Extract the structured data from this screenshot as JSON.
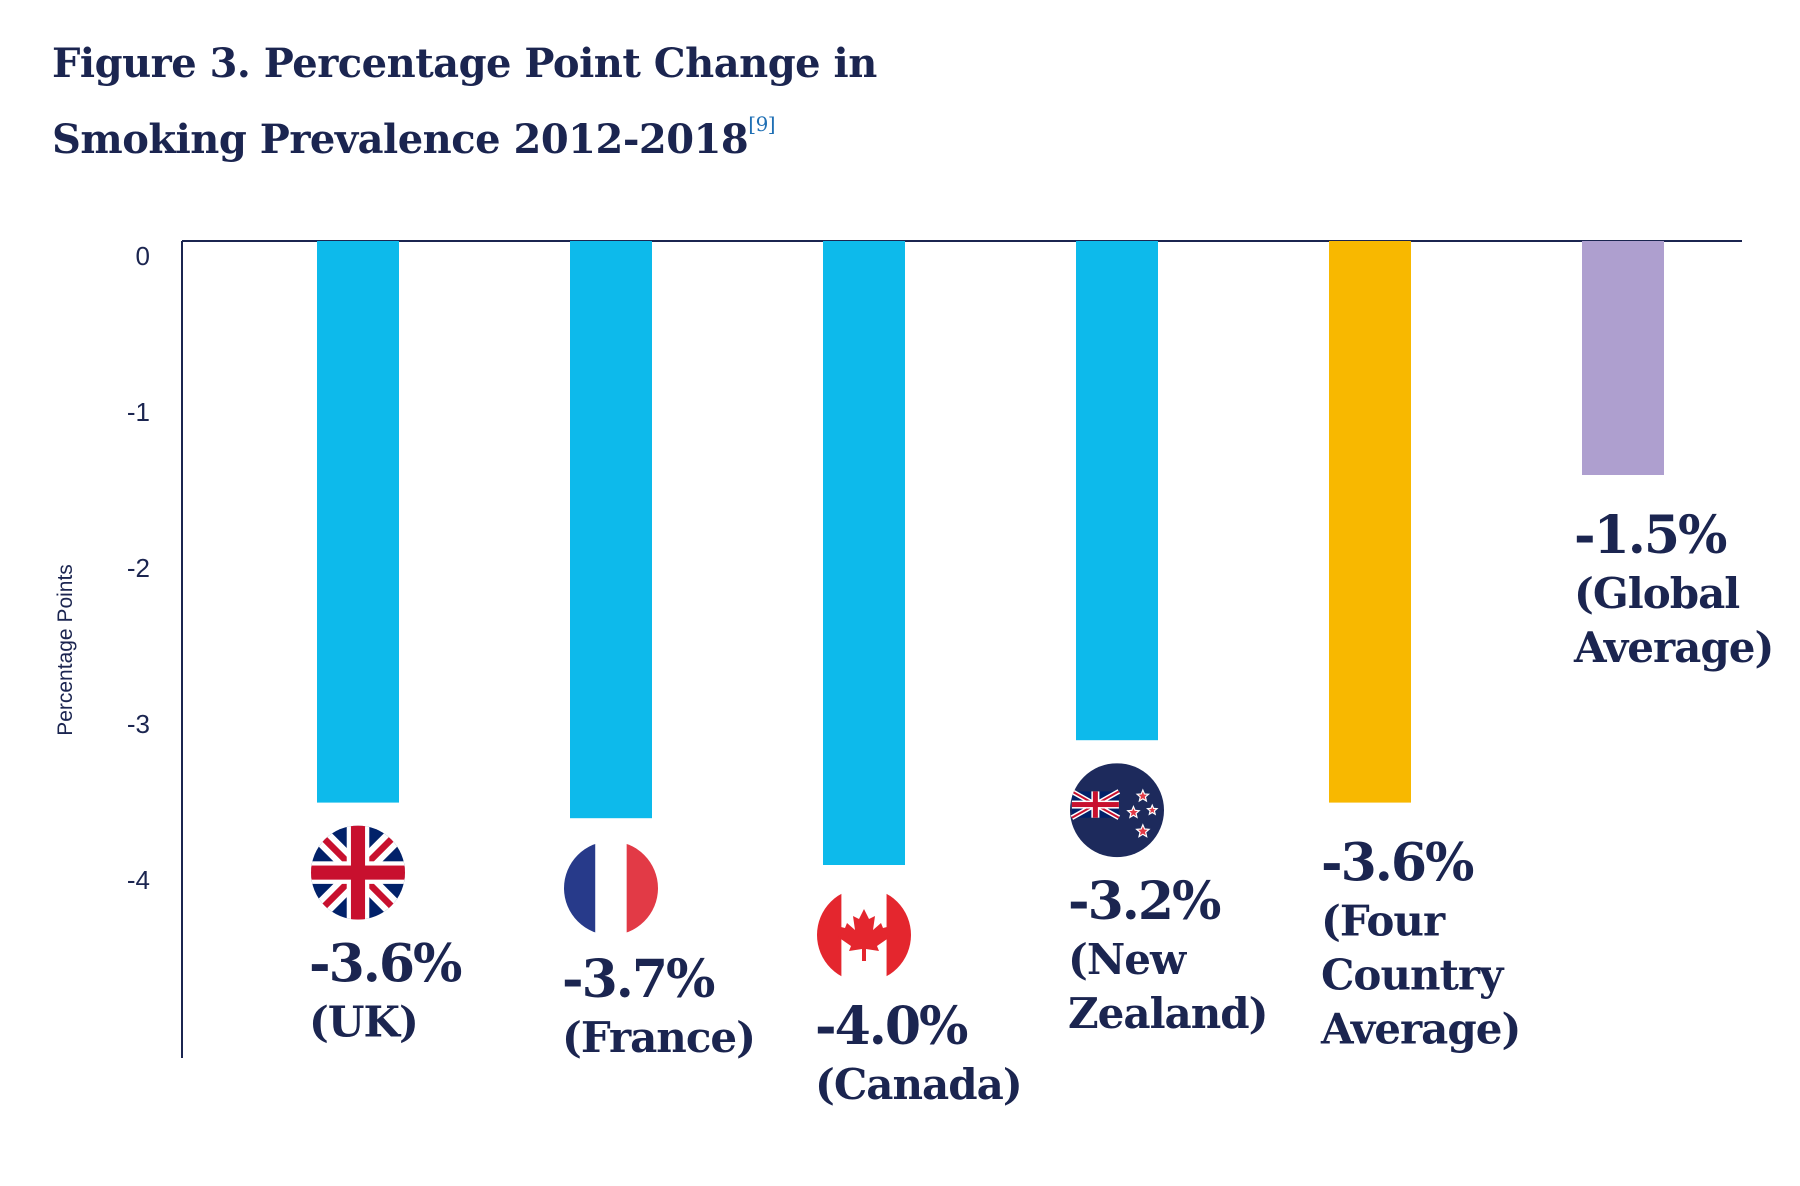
{
  "title": {
    "line1": "Figure 3. Percentage Point Change in",
    "line2": "Smoking Prevalence 2012-2018",
    "ref": "[9]"
  },
  "chart_data": {
    "type": "bar",
    "title": "Figure 3. Percentage Point Change in Smoking Prevalence 2012-2018",
    "xlabel": "",
    "ylabel": "Percentage Points",
    "ylim": [
      -5.2,
      0
    ],
    "yticks": [
      0,
      -1,
      -2,
      -3,
      -4
    ],
    "categories": [
      "UK",
      "France",
      "Canada",
      "New Zealand",
      "Four Country Average",
      "Global Average"
    ],
    "values": [
      -3.6,
      -3.7,
      -4.0,
      -3.2,
      -3.6,
      -1.5
    ],
    "value_labels": [
      "-3.6%",
      "-3.7%",
      "-4.0%",
      "-3.2%",
      "-3.6%",
      "-1.5%"
    ],
    "category_labels": [
      [
        "(UK)"
      ],
      [
        "(France)"
      ],
      [
        "(Canada)"
      ],
      [
        "(New",
        "Zealand)"
      ],
      [
        "(Four",
        "Country",
        "Average)"
      ],
      [
        "(Global",
        "Average)"
      ]
    ],
    "flags": [
      "uk-flag-icon",
      "france-flag-icon",
      "canada-flag-icon",
      "new-zealand-flag-icon",
      "",
      ""
    ],
    "colors": [
      "#0dbaeb",
      "#0dbaeb",
      "#0dbaeb",
      "#0dbaeb",
      "#f8b800",
      "#ae9fcf"
    ],
    "text_color": "#1b2550",
    "grid": false
  }
}
